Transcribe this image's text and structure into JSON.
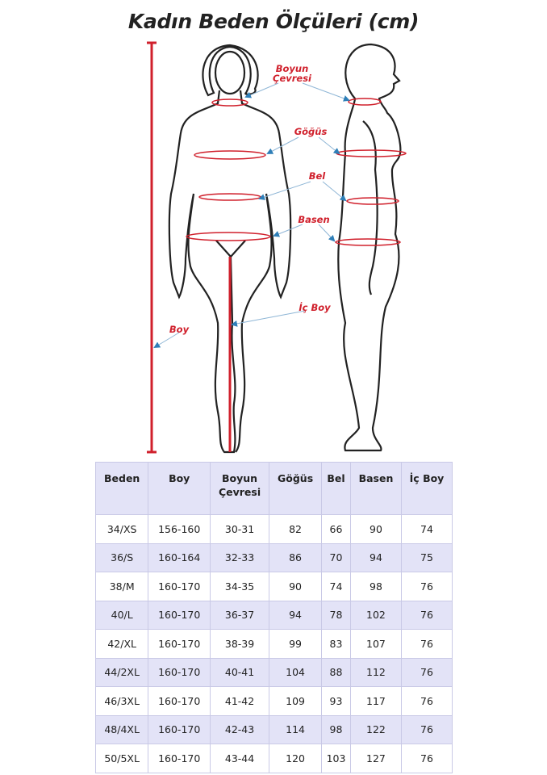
{
  "title": "Kadın Beden Ölçüleri (cm)",
  "labels": {
    "neck": [
      "Boyun",
      "Çevresi"
    ],
    "chest": "Göğüs",
    "waist": "Bel",
    "hip": "Basen",
    "inseam": "İç Boy",
    "height": "Boy"
  },
  "colors": {
    "accent": "#d0202c",
    "arrow": "#2f7fb8",
    "header_bg": "#e3e3f7"
  },
  "table": {
    "headers": [
      "Beden",
      "Boy",
      "Boyun Çevresi",
      "Göğüs",
      "Bel",
      "Basen",
      "İç Boy"
    ],
    "rows": [
      [
        "34/XS",
        "156-160",
        "30-31",
        "82",
        "66",
        "90",
        "74"
      ],
      [
        "36/S",
        "160-164",
        "32-33",
        "86",
        "70",
        "94",
        "75"
      ],
      [
        "38/M",
        "160-170",
        "34-35",
        "90",
        "74",
        "98",
        "76"
      ],
      [
        "40/L",
        "160-170",
        "36-37",
        "94",
        "78",
        "102",
        "76"
      ],
      [
        "42/XL",
        "160-170",
        "38-39",
        "99",
        "83",
        "107",
        "76"
      ],
      [
        "44/2XL",
        "160-170",
        "40-41",
        "104",
        "88",
        "112",
        "76"
      ],
      [
        "46/3XL",
        "160-170",
        "41-42",
        "109",
        "93",
        "117",
        "76"
      ],
      [
        "48/4XL",
        "160-170",
        "42-43",
        "114",
        "98",
        "122",
        "76"
      ],
      [
        "50/5XL",
        "160-170",
        "43-44",
        "120",
        "103",
        "127",
        "76"
      ]
    ]
  }
}
